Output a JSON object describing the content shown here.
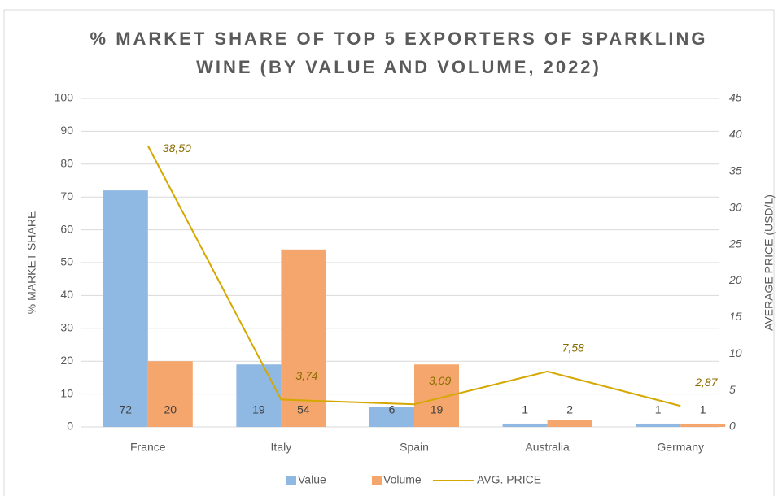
{
  "chart_data": {
    "type": "bar",
    "title": "% MARKET SHARE OF TOP 5 EXPORTERS OF SPARKLING WINE (BY VALUE AND VOLUME, 2022)",
    "ylabel": "% MARKET SHARE",
    "y2label": "AVERAGE PRICE (USD/L)",
    "categories": [
      "France",
      "Italy",
      "Spain",
      "Australia",
      "Germany"
    ],
    "series": [
      {
        "name": "Value",
        "color": "#8fb8e3",
        "values": [
          72,
          19,
          6,
          1,
          1
        ]
      },
      {
        "name": "Volume",
        "color": "#f4a66c",
        "values": [
          20,
          54,
          19,
          2,
          1
        ]
      },
      {
        "name": "AVG. PRICE",
        "color": "#d4a800",
        "type": "line",
        "axis": "y2",
        "values": [
          38.5,
          3.74,
          3.09,
          7.58,
          2.87
        ],
        "value_labels": [
          "38,50",
          "3,74",
          "3,09",
          "7,58",
          "2,87"
        ]
      }
    ],
    "ylim": [
      0,
      100
    ],
    "yticks": [
      0,
      10,
      20,
      30,
      40,
      50,
      60,
      70,
      80,
      90,
      100
    ],
    "y2lim": [
      0,
      45
    ],
    "y2ticks": [
      0,
      5,
      10,
      15,
      20,
      25,
      30,
      35,
      40,
      45
    ],
    "grid": true,
    "legend": "bottom"
  }
}
